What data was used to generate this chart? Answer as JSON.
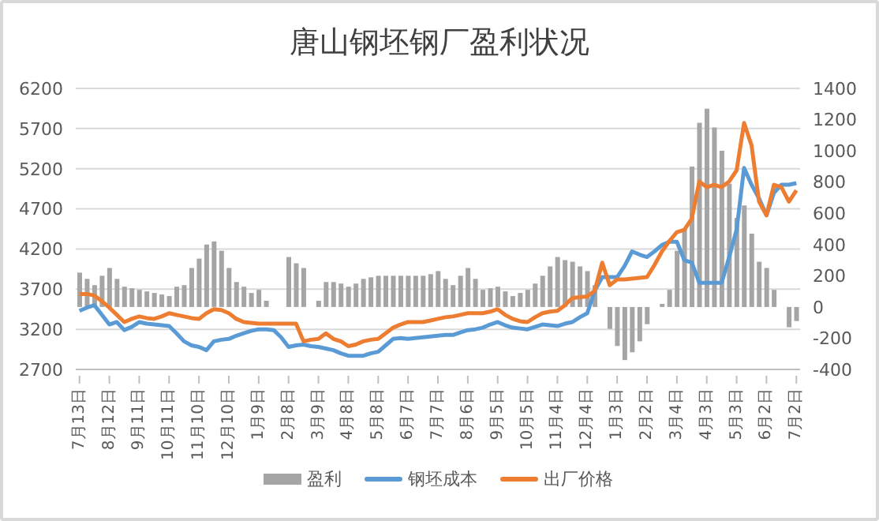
{
  "chart_data": {
    "type": "bar",
    "title": "唐山钢坯钢厂盈利状况",
    "categories": [
      "7月13日",
      null,
      null,
      null,
      "8月12日",
      null,
      null,
      null,
      "9月11日",
      null,
      null,
      null,
      "10月11日",
      null,
      null,
      null,
      "11月10日",
      null,
      null,
      null,
      "12月10日",
      null,
      null,
      null,
      "1月9日",
      null,
      null,
      null,
      "2月8日",
      null,
      null,
      null,
      "3月9日",
      null,
      null,
      null,
      "4月8日",
      null,
      null,
      null,
      "5月8日",
      null,
      null,
      null,
      "6月7日",
      null,
      null,
      null,
      "7月7日",
      null,
      null,
      null,
      "8月6日",
      null,
      null,
      null,
      "9月5日",
      null,
      null,
      null,
      "10月5日",
      null,
      null,
      null,
      "11月4日",
      null,
      null,
      null,
      "12月4日",
      null,
      null,
      null,
      "1月3日",
      null,
      null,
      null,
      "2月2日",
      null,
      null,
      null,
      "3月4日",
      null,
      null,
      null,
      "4月3日",
      null,
      null,
      null,
      "5月3日",
      null,
      null,
      null,
      "6月2日",
      null,
      null,
      null,
      "7月2日"
    ],
    "series": [
      {
        "name": "盈利",
        "axis": "y2",
        "color": "#a5a5a5",
        "values": [
          220,
          180,
          140,
          200,
          250,
          180,
          130,
          120,
          110,
          100,
          90,
          80,
          70,
          130,
          140,
          250,
          310,
          400,
          420,
          360,
          250,
          160,
          130,
          90,
          110,
          40,
          null,
          null,
          320,
          280,
          250,
          0,
          40,
          160,
          160,
          150,
          130,
          150,
          180,
          190,
          200,
          200,
          200,
          200,
          200,
          200,
          200,
          210,
          230,
          180,
          140,
          200,
          250,
          180,
          110,
          120,
          130,
          100,
          70,
          90,
          110,
          150,
          200,
          260,
          320,
          300,
          290,
          260,
          230,
          140,
          0,
          -140,
          -250,
          -340,
          -290,
          -220,
          -110,
          0,
          20,
          110,
          360,
          500,
          900,
          1180,
          1270,
          1150,
          1000,
          790,
          570,
          650,
          470,
          290,
          250,
          110,
          0,
          -130,
          -90
        ]
      },
      {
        "name": "钢坯成本",
        "type": "line",
        "color": "#5b9bd5",
        "values": [
          3430,
          3470,
          3500,
          3380,
          3260,
          3290,
          3190,
          3230,
          3290,
          3270,
          3260,
          3250,
          3240,
          3150,
          3050,
          3000,
          2980,
          2940,
          3050,
          3070,
          3080,
          3120,
          3150,
          3180,
          3200,
          3200,
          3190,
          3100,
          2980,
          3000,
          3010,
          2990,
          2980,
          2960,
          2940,
          2900,
          2870,
          2870,
          2870,
          2900,
          2920,
          3000,
          3080,
          3090,
          3080,
          3090,
          3100,
          3110,
          3120,
          3130,
          3130,
          3160,
          3190,
          3200,
          3220,
          3260,
          3290,
          3250,
          3220,
          3210,
          3200,
          3230,
          3260,
          3250,
          3240,
          3270,
          3290,
          3350,
          3400,
          3680,
          3850,
          3850,
          3850,
          3990,
          4170,
          4130,
          4100,
          4170,
          4250,
          4290,
          4290,
          4060,
          4030,
          3780,
          3780,
          3780,
          3780,
          4100,
          4440,
          5210,
          5000,
          4830,
          4620,
          4900,
          5000,
          5000,
          5020
        ]
      },
      {
        "name": "出厂价格",
        "type": "line",
        "color": "#ed7d31",
        "values": [
          3640,
          3640,
          3620,
          3550,
          3470,
          3380,
          3290,
          3330,
          3360,
          3340,
          3330,
          3360,
          3400,
          3380,
          3360,
          3340,
          3330,
          3400,
          3450,
          3440,
          3400,
          3330,
          3290,
          3280,
          3270,
          3270,
          3270,
          3270,
          3270,
          3270,
          3050,
          3070,
          3080,
          3150,
          3080,
          3050,
          2990,
          3010,
          3050,
          3070,
          3080,
          3150,
          3220,
          3260,
          3290,
          3290,
          3290,
          3310,
          3330,
          3350,
          3360,
          3380,
          3400,
          3400,
          3400,
          3420,
          3450,
          3380,
          3330,
          3300,
          3290,
          3350,
          3400,
          3420,
          3430,
          3500,
          3590,
          3600,
          3610,
          3680,
          4030,
          3750,
          3820,
          3820,
          3830,
          3840,
          3850,
          4000,
          4170,
          4300,
          4410,
          4440,
          4580,
          5040,
          4970,
          5000,
          4970,
          5040,
          5180,
          5770,
          5490,
          4790,
          4620,
          5000,
          4970,
          4790,
          4930
        ]
      }
    ],
    "ylim": [
      2700,
      6200
    ],
    "yticks": [
      2700,
      3200,
      3700,
      4200,
      4700,
      5200,
      5700,
      6200
    ],
    "y2lim": [
      -400,
      1400
    ],
    "y2ticks": [
      -400,
      -200,
      0,
      200,
      400,
      600,
      800,
      1000,
      1200,
      1400
    ],
    "grid": "y",
    "legend": "bottom"
  }
}
